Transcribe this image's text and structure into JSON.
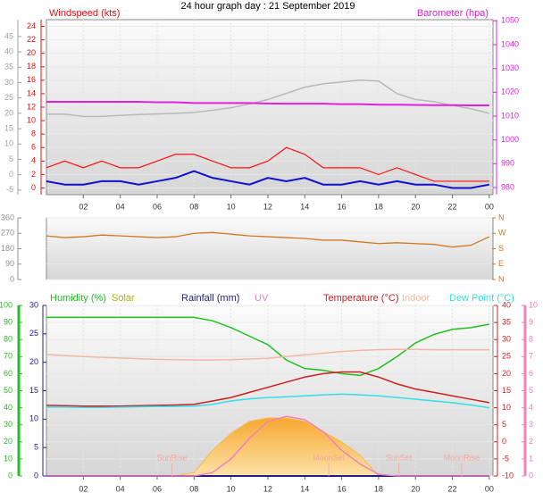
{
  "chart_data": [
    {
      "type": "line",
      "title": "24 hour graph day : 21 September 2019",
      "ylabel": "Windspeed (kts)",
      "y2label": "Barometer (hpa)",
      "x": [
        0,
        1,
        2,
        3,
        4,
        5,
        6,
        7,
        8,
        9,
        10,
        11,
        12,
        13,
        14,
        15,
        16,
        17,
        18,
        19,
        20,
        21,
        22,
        23,
        24
      ],
      "xlim": [
        0,
        24.2
      ],
      "xticks": [
        {
          "value": 2,
          "label": "02"
        },
        {
          "value": 4,
          "label": "04"
        },
        {
          "value": 6,
          "label": "06"
        },
        {
          "value": 8,
          "label": "08"
        },
        10,
        12,
        14,
        16,
        18,
        20,
        22,
        {
          "value": 24,
          "label": "00"
        }
      ],
      "ylim": [
        -1,
        25
      ],
      "yticks": [
        0,
        2,
        4,
        6,
        8,
        10,
        12,
        14,
        16,
        18,
        20,
        22,
        24
      ],
      "y2lim": [
        977,
        1050.5
      ],
      "y2ticks": [
        980,
        990,
        1000,
        1010,
        1020,
        1030,
        1040,
        1050
      ],
      "y3lim": [
        -6.5,
        50.5
      ],
      "y3ticks": [
        -5,
        0,
        5,
        10,
        15,
        20,
        25,
        30,
        35,
        40,
        45
      ],
      "axis_colors": {
        "y": "#e01010",
        "y2": "#e020e0",
        "y3": "#a0a0a0"
      },
      "grid": true,
      "series": [
        {
          "color": "#b8b8b8",
          "axis": "y3",
          "values": [
            19.7,
            19.7,
            19,
            19,
            19.3,
            19.6,
            19.8,
            20,
            20.3,
            21,
            21.8,
            23,
            24.5,
            26.5,
            28.5,
            29.6,
            30.2,
            30.8,
            30.5,
            26.4,
            24.5,
            23.8,
            22.6,
            21.5,
            20
          ]
        },
        {
          "color": "#e020e0",
          "axis": "y2",
          "values": [
            1016,
            1016,
            1016,
            1016,
            1016,
            1016,
            1015.8,
            1015.8,
            1015.5,
            1015.5,
            1015.5,
            1015.5,
            1015.3,
            1015.2,
            1015.2,
            1015.2,
            1015,
            1015,
            1014.8,
            1014.8,
            1014.7,
            1014.6,
            1014.6,
            1014.5,
            1014.5
          ]
        },
        {
          "color": "#ff1010",
          "values": [
            3,
            4,
            3,
            4,
            3,
            3,
            4,
            5,
            5,
            4,
            3,
            3,
            4,
            6,
            5,
            3,
            3,
            3,
            2,
            3,
            2,
            1,
            1,
            1,
            1
          ]
        },
        {
          "color": "#1010d0",
          "values": [
            1,
            0.5,
            0.5,
            1,
            1,
            0.5,
            1,
            1.5,
            2.5,
            1.5,
            1,
            0.5,
            1.5,
            1,
            1.5,
            0.5,
            0.5,
            1,
            0.5,
            1,
            0.5,
            0.5,
            0,
            0,
            0.5
          ]
        }
      ]
    },
    {
      "type": "line",
      "x": [
        0,
        1,
        2,
        3,
        4,
        5,
        6,
        7,
        8,
        9,
        10,
        11,
        12,
        13,
        14,
        15,
        16,
        17,
        18,
        19,
        20,
        21,
        22,
        23,
        24
      ],
      "xlim": [
        0,
        24.2
      ],
      "ylim": [
        0,
        360
      ],
      "yticks": [
        0,
        90,
        180,
        270,
        360
      ],
      "y2lim": [
        0,
        360
      ],
      "y2ticks": [
        {
          "value": 0,
          "label": "N"
        },
        {
          "value": 90,
          "label": "E"
        },
        {
          "value": 180,
          "label": "S"
        },
        {
          "value": 270,
          "label": "W"
        },
        {
          "value": 360,
          "label": "N"
        }
      ],
      "axis_colors": {
        "y": "#909090",
        "y2": "#d07820"
      },
      "grid": true,
      "series": [
        {
          "color": "#d07820",
          "values": [
            255,
            245,
            250,
            260,
            255,
            250,
            245,
            250,
            270,
            275,
            265,
            255,
            250,
            245,
            240,
            230,
            230,
            220,
            210,
            215,
            210,
            205,
            190,
            200,
            250
          ]
        }
      ]
    },
    {
      "type": "line",
      "x": [
        0,
        1,
        2,
        3,
        4,
        5,
        6,
        7,
        8,
        9,
        10,
        11,
        12,
        13,
        14,
        15,
        16,
        17,
        18,
        19,
        20,
        21,
        22,
        23,
        24
      ],
      "xlim": [
        0,
        24.2
      ],
      "xticks": [
        {
          "value": 2,
          "label": "02"
        },
        {
          "value": 4,
          "label": "04"
        },
        {
          "value": 6,
          "label": "06"
        },
        {
          "value": 8,
          "label": "08"
        },
        10,
        12,
        14,
        16,
        18,
        20,
        22,
        {
          "value": 24,
          "label": "00"
        }
      ],
      "ylim": [
        0,
        100
      ],
      "yticks": [
        0,
        10,
        20,
        30,
        40,
        50,
        60,
        70,
        80,
        90,
        100
      ],
      "y2lim": [
        -10,
        40
      ],
      "y2ticks": [
        -10,
        -5,
        0,
        5,
        10,
        15,
        20,
        25,
        30,
        35,
        40
      ],
      "y3lim": [
        0,
        30
      ],
      "y3ticks": [
        0,
        5,
        10,
        15,
        20,
        25,
        30
      ],
      "y4lim": [
        0,
        10
      ],
      "y4ticks": [
        0,
        1,
        2,
        3,
        4,
        5,
        6,
        7,
        8,
        9,
        10
      ],
      "axis_colors": {
        "y": "#20c020",
        "y2": "#cc2020",
        "y3": "#202080",
        "y4": "#f080c0"
      },
      "grid": true,
      "series": [
        {
          "name": "Humidity (%)",
          "color": "#20c020",
          "values": [
            93,
            93,
            93,
            93,
            93,
            93,
            93,
            93,
            93,
            91,
            87,
            82,
            77,
            68,
            63,
            62,
            60,
            59,
            63,
            70,
            78,
            83,
            86,
            87,
            89
          ]
        },
        {
          "name": "Solar",
          "color": "#b0b000",
          "fill": "#f8b848",
          "axis": "y4",
          "values": [
            0,
            0,
            0,
            0,
            0,
            0,
            0,
            0,
            0.2,
            1.5,
            2.5,
            3.2,
            3.4,
            3.4,
            3.2,
            2.6,
            2,
            1.2,
            0,
            0,
            0,
            0,
            0,
            0,
            0
          ]
        },
        {
          "name": "Rainfall (mm)",
          "color": "#202080",
          "axis": "y3",
          "values": [
            0,
            0,
            0,
            0,
            0,
            0,
            0,
            0,
            0,
            0,
            0,
            0,
            0,
            0,
            0,
            0,
            0,
            0,
            0,
            0,
            0,
            0,
            0,
            0,
            0
          ]
        },
        {
          "name": "UV",
          "color": "#f080c0",
          "axis": "y4",
          "values": [
            0,
            0,
            0,
            0,
            0,
            0,
            0,
            0,
            0,
            0.2,
            1,
            2.2,
            3.2,
            3.5,
            3.3,
            2.6,
            1.5,
            0.7,
            0.1,
            0,
            0,
            0,
            0,
            0,
            0
          ]
        },
        {
          "name": "Temperature (°C)",
          "color": "#cc2020",
          "axis": "y2",
          "values": [
            10.7,
            10.6,
            10.5,
            10.5,
            10.5,
            10.6,
            10.7,
            10.8,
            11,
            12,
            13,
            14.5,
            16,
            17.5,
            19,
            20,
            20.5,
            20.5,
            19,
            17,
            15.5,
            14.5,
            13.5,
            12.5,
            11.5
          ]
        },
        {
          "name": "Indoor",
          "color": "#f0b8a0",
          "axis": "y2",
          "values": [
            25.6,
            25.3,
            25,
            24.8,
            24.6,
            24.4,
            24.2,
            24.1,
            24,
            24,
            24.1,
            24.3,
            24.5,
            25,
            25.5,
            26,
            26.5,
            26.8,
            27,
            27.1,
            27.1,
            27,
            27,
            27,
            27
          ]
        },
        {
          "name": "Dew Point (°C)",
          "color": "#30e0e8",
          "axis": "y2",
          "values": [
            10.2,
            10.2,
            10.1,
            10.1,
            10.2,
            10.3,
            10.4,
            10.4,
            10.5,
            11,
            12,
            12.6,
            13,
            13.2,
            13.5,
            13.8,
            14,
            13.8,
            13.5,
            13,
            12.5,
            12,
            11.5,
            10.8,
            10
          ]
        }
      ],
      "annotations": [
        {
          "text": "SunRise",
          "x": 6.8
        },
        {
          "text": "MoonSet",
          "x": 15.3
        },
        {
          "text": "SunSet",
          "x": 19.1
        },
        {
          "text": "MoonRise",
          "x": 22.5
        }
      ]
    }
  ]
}
